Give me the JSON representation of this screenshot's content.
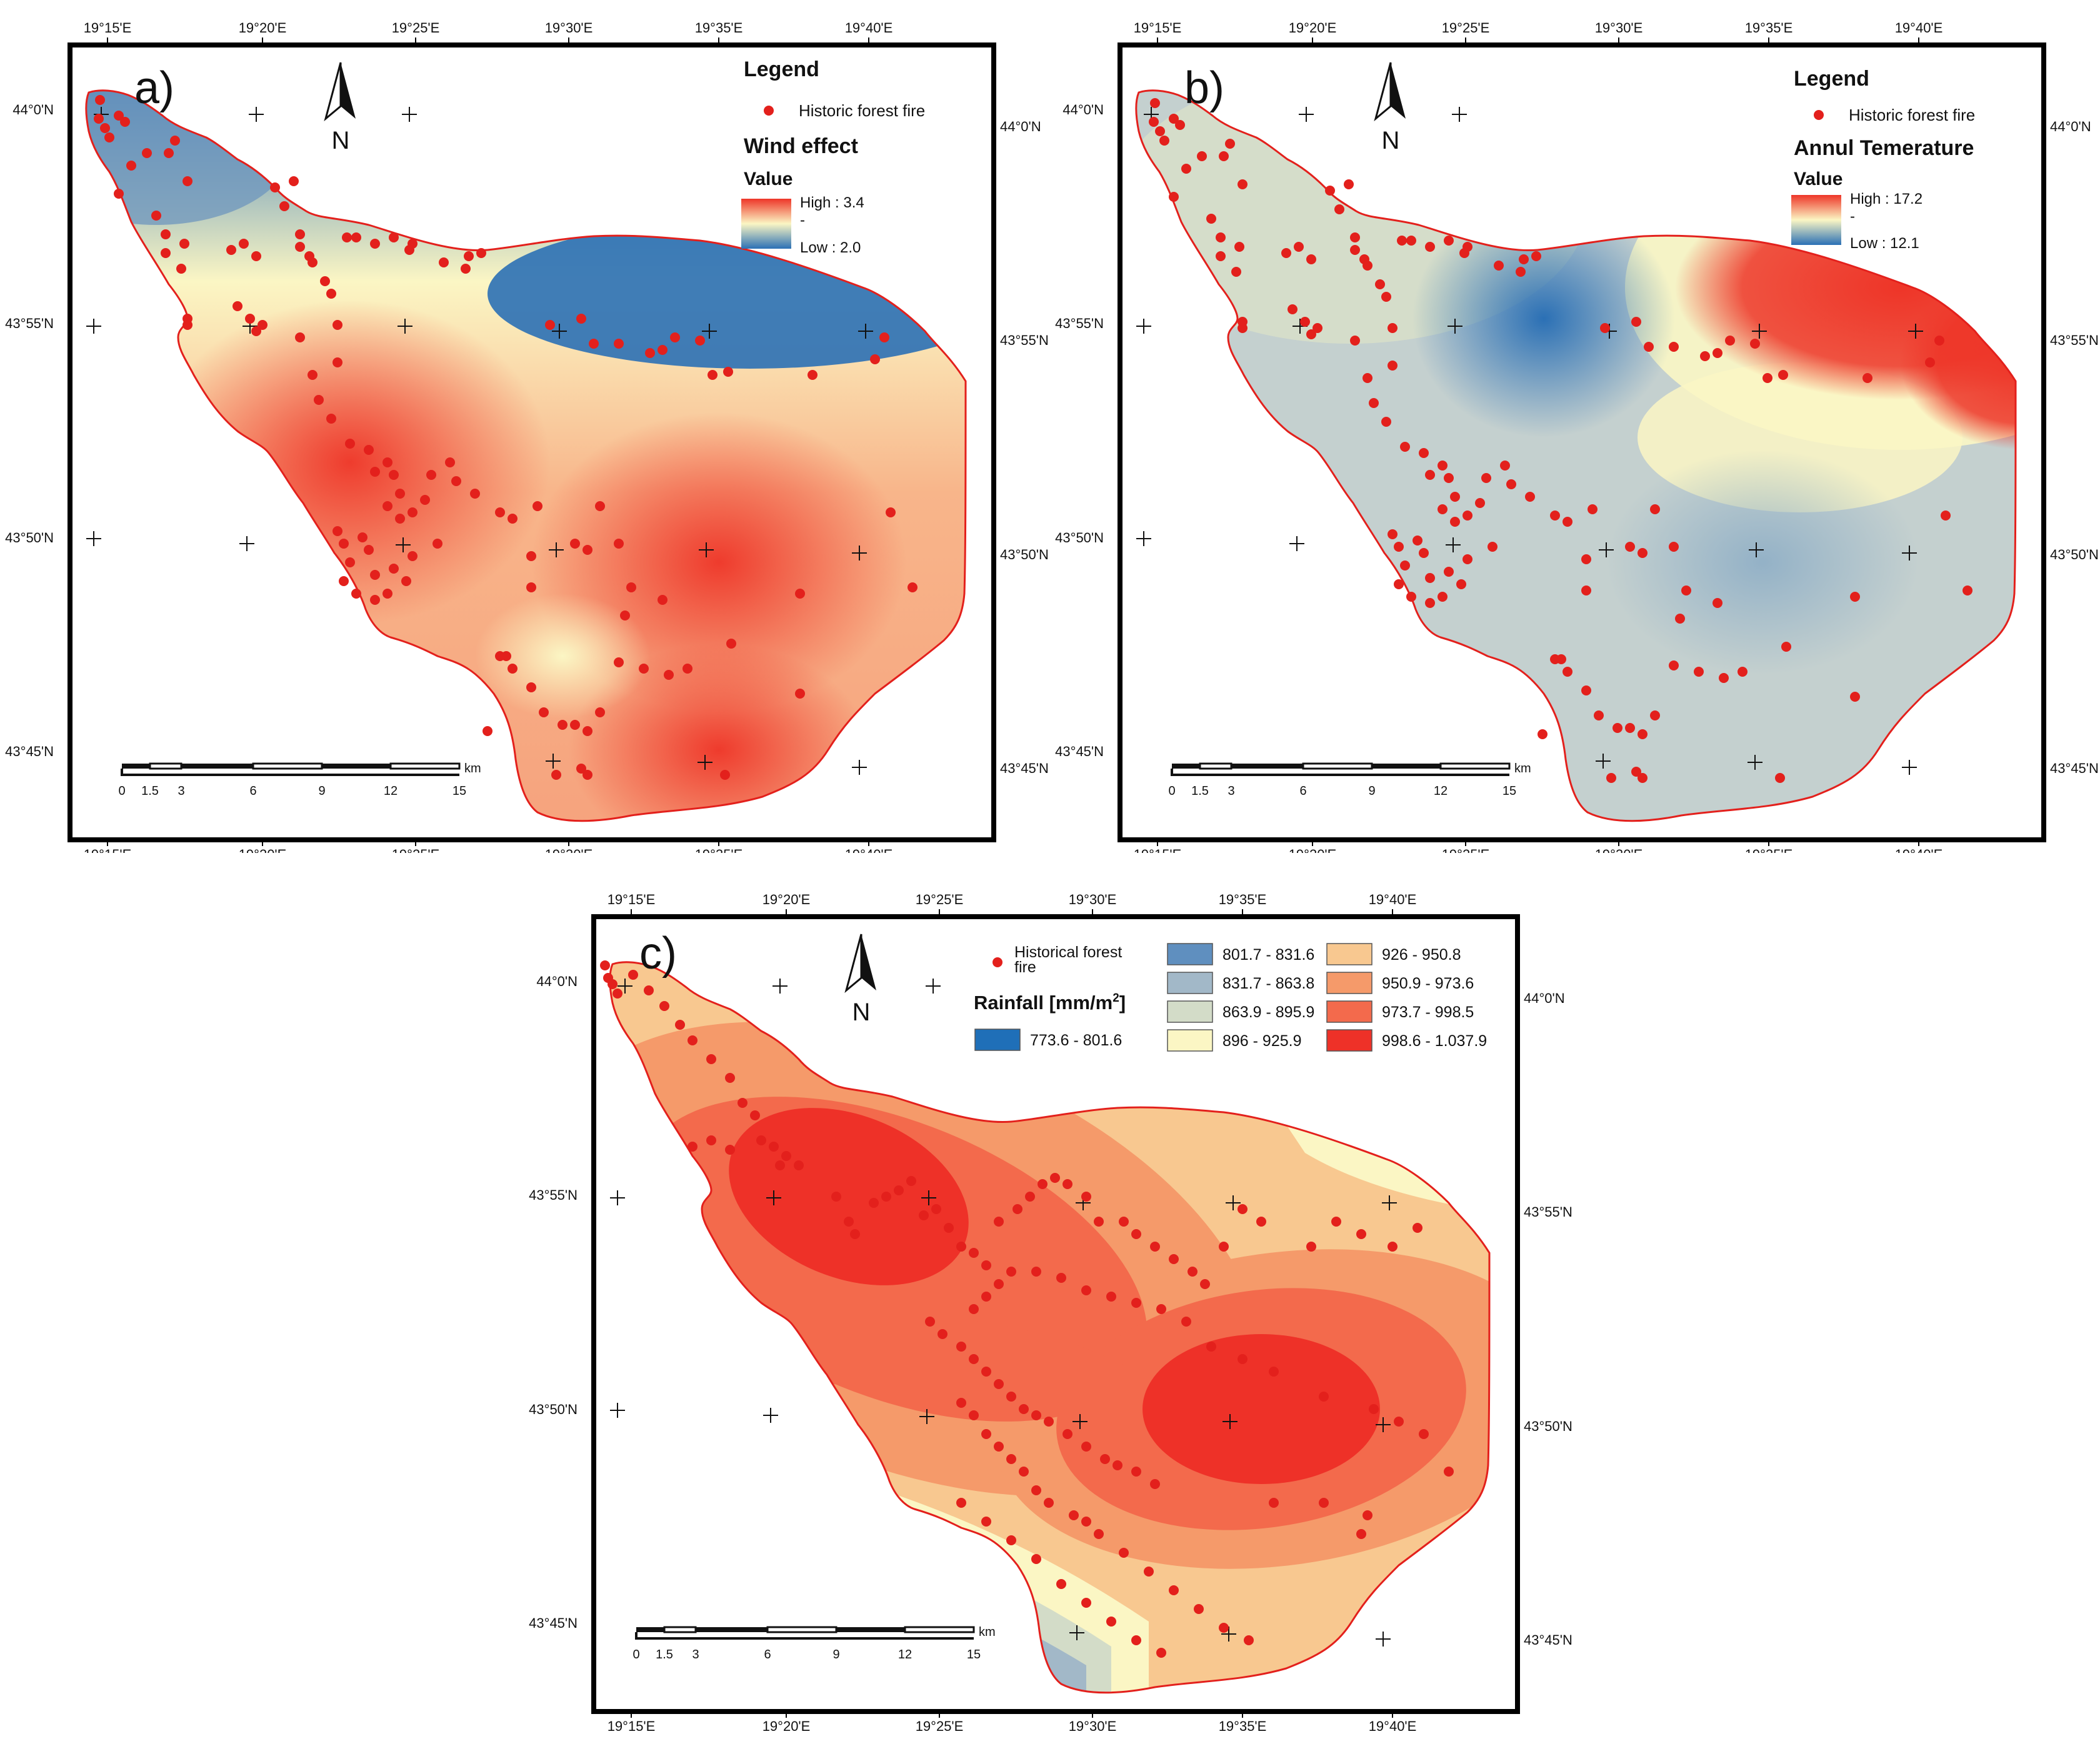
{
  "panels": [
    {
      "letter": "a)",
      "legend_title": "Legend",
      "point_label": "Historic forest fire",
      "layer_title": "Wind effect",
      "value_label": "Value",
      "high_label": "High : 3.4",
      "low_label": "Low : 2.0",
      "colors": {
        "low": "#2b70b5",
        "mid": "#fbf6c4",
        "high": "#ee3528"
      }
    },
    {
      "letter": "b)",
      "legend_title": "Legend",
      "point_label": "Historic forest fire",
      "layer_title": "Annul Temerature",
      "value_label": "Value",
      "high_label": "High : 17.2",
      "low_label": "Low : 12.1",
      "colors": {
        "low": "#2b70b5",
        "mid": "#fbf6c4",
        "high": "#ee3528"
      }
    },
    {
      "letter": "c)",
      "point_label_line1": "Historical forest",
      "point_label_line2": "fire",
      "layer_title": "Rainfall [mm/m",
      "layer_title_sup": "2",
      "layer_title_end": "]",
      "classes": [
        {
          "label": "773.6 - 801.6",
          "color": "#1f6fb8"
        },
        {
          "label": "801.7 - 831.6",
          "color": "#5f8fbf"
        },
        {
          "label": "831.7 - 863.8",
          "color": "#a2b8c8"
        },
        {
          "label": "863.9 - 895.9",
          "color": "#d3dcc8"
        },
        {
          "label": "896 - 925.9",
          "color": "#fbf6c4"
        },
        {
          "label": "926 - 950.8",
          "color": "#f8c890"
        },
        {
          "label": "950.9 - 973.6",
          "color": "#f59a6a"
        },
        {
          "label": "973.7 - 998.5",
          "color": "#f36a4c"
        },
        {
          "label": "998.6 - 1.037.9",
          "color": "#ee3128"
        }
      ]
    }
  ],
  "axes": {
    "lon_labels": [
      "19°15'E",
      "19°20'E",
      "19°25'E",
      "19°30'E",
      "19°35'E",
      "19°40'E"
    ],
    "lat_labels_left": [
      "44°0'N",
      "43°55'N",
      "43°50'N",
      "43°45'N"
    ],
    "lat_labels_right": [
      "44°0'N",
      "43°55'N",
      "43°50'N",
      "43°45'N"
    ]
  },
  "scale_bar": {
    "unit": "km",
    "ticks": [
      "0",
      "1.5",
      "3",
      "6",
      "9",
      "12",
      "15"
    ]
  },
  "north_arrow": {
    "label": "N"
  },
  "fire_point_color": "#e3201c",
  "boundary_color": "#e3201c"
}
